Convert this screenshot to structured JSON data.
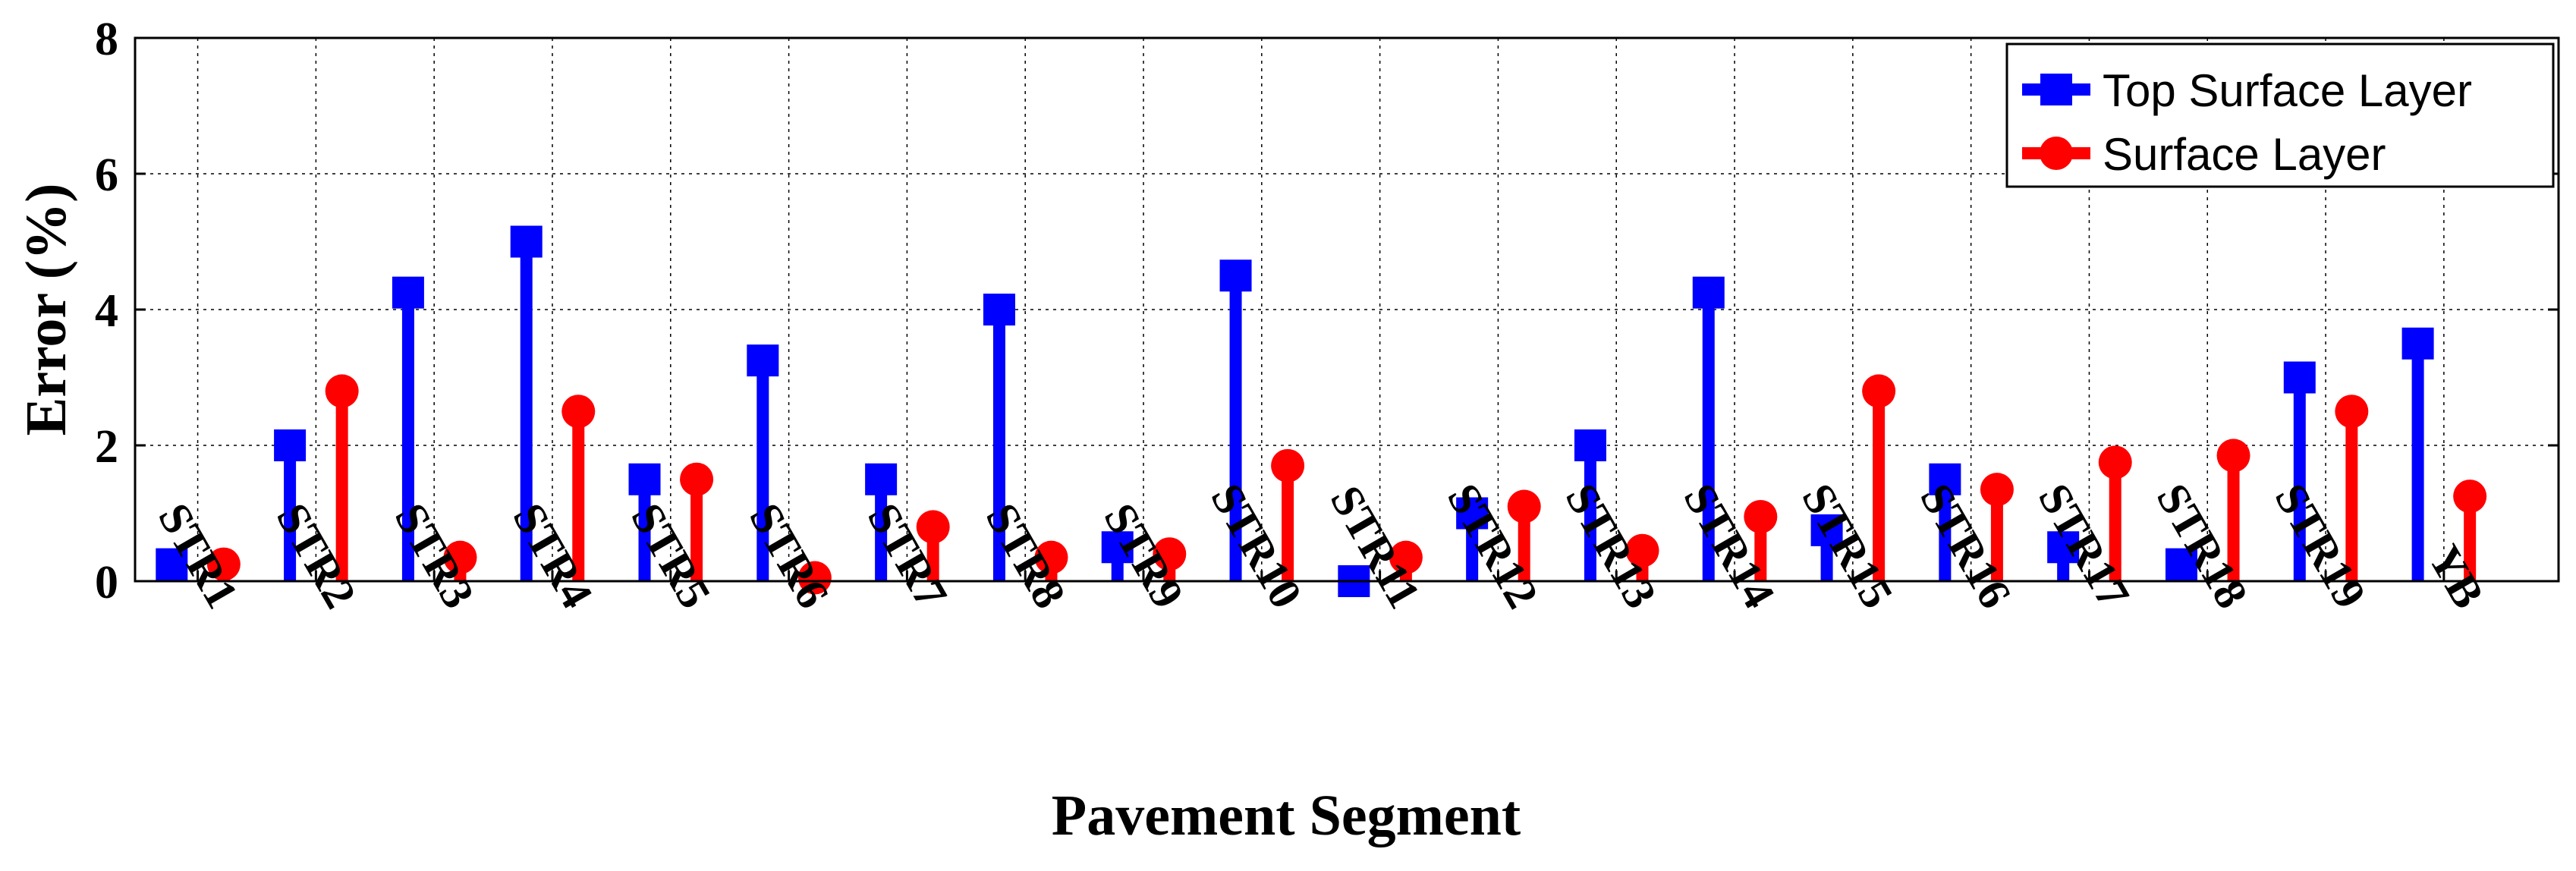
{
  "chart_data": {
    "type": "stem",
    "title": "",
    "xlabel": "Pavement Segment",
    "ylabel": "Error (%)",
    "ylim": [
      0,
      8
    ],
    "yticks": [
      0,
      2,
      4,
      6,
      8
    ],
    "grid": true,
    "legend_position": "top-right",
    "categories": [
      "STR1",
      "STR2",
      "STR3",
      "STR4",
      "STR5",
      "STR6",
      "STR7",
      "STR8",
      "STR9",
      "STR10",
      "STR11",
      "STR12",
      "STR13",
      "STR14",
      "STR15",
      "STR16",
      "STR17",
      "STR18",
      "STR19",
      "YB"
    ],
    "series": [
      {
        "name": "Top Surface Layer",
        "color": "#0000ff",
        "marker": "square",
        "values": [
          0.25,
          2.0,
          4.25,
          5.0,
          1.5,
          3.25,
          1.5,
          4.0,
          0.5,
          4.5,
          0.0,
          1.0,
          2.0,
          4.25,
          0.75,
          1.5,
          0.5,
          0.25,
          3.0,
          3.5
        ]
      },
      {
        "name": "Surface Layer",
        "color": "#ff0000",
        "marker": "circle",
        "values": [
          0.25,
          2.8,
          0.35,
          2.5,
          1.5,
          0.05,
          0.8,
          0.35,
          0.4,
          1.7,
          0.35,
          1.1,
          0.45,
          0.95,
          2.8,
          1.35,
          1.75,
          1.85,
          2.5,
          1.25
        ]
      }
    ]
  }
}
